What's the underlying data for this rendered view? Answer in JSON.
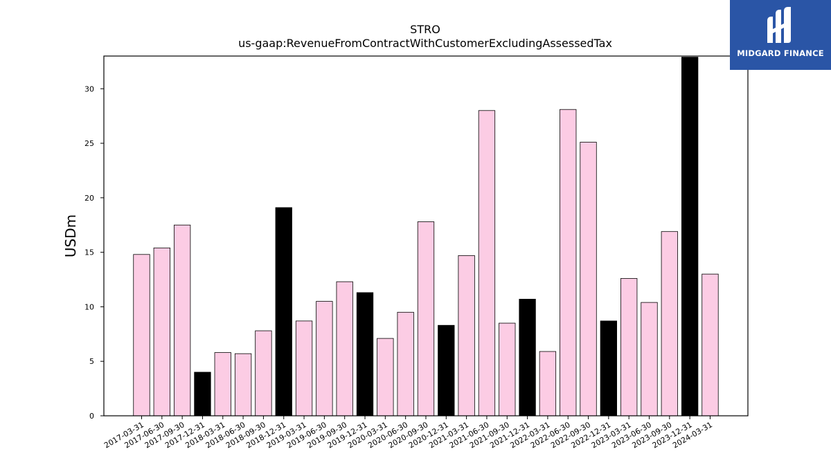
{
  "logo": {
    "text": "MIDGARD FINANCE",
    "background": "#2a55a6",
    "icon": "midgard-m-logo-icon"
  },
  "chart_data": {
    "type": "bar",
    "title": "STRO",
    "subtitle": "us-gaap:RevenueFromContractWithCustomerExcludingAssessedTax",
    "xlabel": "",
    "ylabel": "USDm",
    "ylim": [
      0,
      33
    ],
    "yticks": [
      0,
      5,
      10,
      15,
      20,
      25,
      30
    ],
    "grid": false,
    "colors": {
      "quarter": "#fccce4",
      "year_end": "#000000",
      "edge": "#000000"
    },
    "categories": [
      "2017-03-31",
      "2017-06-30",
      "2017-09-30",
      "2017-12-31",
      "2018-03-31",
      "2018-06-30",
      "2018-09-30",
      "2018-12-31",
      "2019-03-31",
      "2019-06-30",
      "2019-09-30",
      "2019-12-31",
      "2020-03-31",
      "2020-06-30",
      "2020-09-30",
      "2020-12-31",
      "2021-03-31",
      "2021-06-30",
      "2021-09-30",
      "2021-12-31",
      "2022-03-31",
      "2022-06-30",
      "2022-09-30",
      "2022-12-31",
      "2023-03-31",
      "2023-06-30",
      "2023-09-30",
      "2023-12-31",
      "2024-03-31"
    ],
    "values": [
      14.8,
      15.4,
      17.5,
      4.0,
      5.8,
      5.7,
      7.8,
      19.1,
      8.7,
      10.5,
      12.3,
      11.3,
      7.1,
      9.5,
      17.8,
      8.3,
      14.7,
      28.0,
      8.5,
      10.7,
      5.9,
      28.1,
      25.1,
      8.7,
      12.6,
      10.4,
      16.9,
      32.9,
      13.0
    ]
  }
}
